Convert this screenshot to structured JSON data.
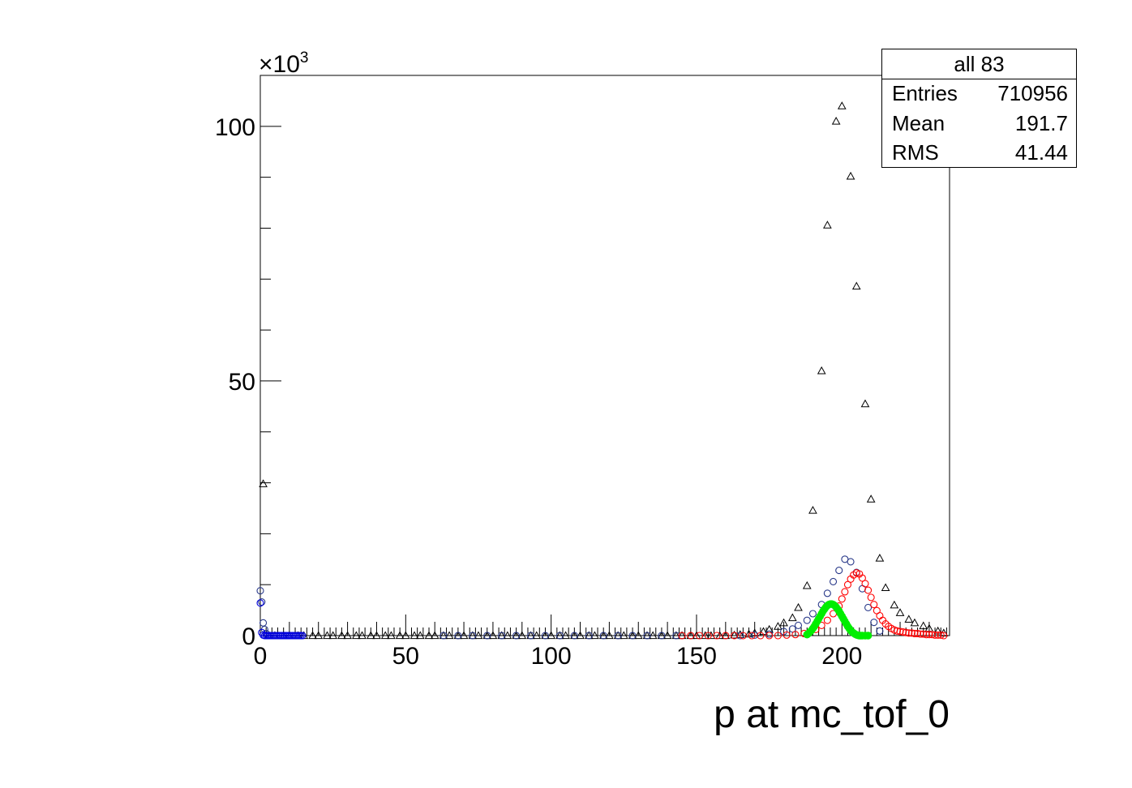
{
  "stats_box": {
    "title": "all 83",
    "rows": [
      {
        "label": "Entries",
        "value": "710956"
      },
      {
        "label": "Mean",
        "value": "191.7"
      },
      {
        "label": "RMS",
        "value": "41.44"
      }
    ]
  },
  "chart_data": {
    "type": "scatter",
    "title": "",
    "xlabel": "p at mc_tof_0",
    "ylabel": "",
    "y_multiplier_label": "×10",
    "y_multiplier_exponent": "3",
    "xlim": [
      0,
      237
    ],
    "ylim": [
      0,
      110000
    ],
    "x_ticks": [
      0,
      50,
      100,
      150,
      200
    ],
    "x_tick_labels": [
      "0",
      "50",
      "100",
      "150",
      "200"
    ],
    "y_ticks": [
      0,
      50000,
      100000
    ],
    "y_tick_labels": [
      "0",
      "50",
      "100"
    ],
    "grid": false,
    "series": [
      {
        "marker": "open-triangle",
        "color": "#000000",
        "points": [
          [
            1,
            29800
          ],
          [
            3,
            0
          ],
          [
            5,
            0
          ],
          [
            8,
            0
          ],
          [
            10,
            0
          ],
          [
            13,
            0
          ],
          [
            15,
            0
          ],
          [
            18,
            0
          ],
          [
            20,
            0
          ],
          [
            23,
            0
          ],
          [
            25,
            0
          ],
          [
            28,
            0
          ],
          [
            30,
            0
          ],
          [
            33,
            0
          ],
          [
            35,
            0
          ],
          [
            38,
            0
          ],
          [
            40,
            0
          ],
          [
            43,
            0
          ],
          [
            45,
            0
          ],
          [
            48,
            0
          ],
          [
            50,
            0
          ],
          [
            53,
            0
          ],
          [
            55,
            0
          ],
          [
            58,
            0
          ],
          [
            60,
            0
          ],
          [
            63,
            0
          ],
          [
            65,
            0
          ],
          [
            68,
            0
          ],
          [
            70,
            0
          ],
          [
            73,
            0
          ],
          [
            75,
            0
          ],
          [
            78,
            0
          ],
          [
            80,
            0
          ],
          [
            83,
            0
          ],
          [
            85,
            0
          ],
          [
            88,
            0
          ],
          [
            90,
            0
          ],
          [
            93,
            0
          ],
          [
            95,
            0
          ],
          [
            98,
            0
          ],
          [
            100,
            0
          ],
          [
            103,
            0
          ],
          [
            105,
            0
          ],
          [
            108,
            0
          ],
          [
            110,
            0
          ],
          [
            113,
            0
          ],
          [
            115,
            0
          ],
          [
            118,
            0
          ],
          [
            120,
            0
          ],
          [
            123,
            0
          ],
          [
            125,
            0
          ],
          [
            128,
            0
          ],
          [
            130,
            0
          ],
          [
            133,
            0
          ],
          [
            135,
            0
          ],
          [
            138,
            0
          ],
          [
            140,
            0
          ],
          [
            143,
            0
          ],
          [
            145,
            0
          ],
          [
            148,
            0
          ],
          [
            150,
            0
          ],
          [
            153,
            0
          ],
          [
            155,
            0
          ],
          [
            158,
            0
          ],
          [
            160,
            0
          ],
          [
            163,
            100
          ],
          [
            165,
            200
          ],
          [
            168,
            300
          ],
          [
            170,
            500
          ],
          [
            173,
            800
          ],
          [
            175,
            1200
          ],
          [
            178,
            1800
          ],
          [
            180,
            2500
          ],
          [
            183,
            3500
          ],
          [
            185,
            5500
          ],
          [
            188,
            9800
          ],
          [
            190,
            24600
          ],
          [
            193,
            52000
          ],
          [
            195,
            80600
          ],
          [
            198,
            101000
          ],
          [
            200,
            104000
          ],
          [
            203,
            90200
          ],
          [
            205,
            68600
          ],
          [
            208,
            45500
          ],
          [
            210,
            26800
          ],
          [
            213,
            15200
          ],
          [
            215,
            9400
          ],
          [
            218,
            6000
          ],
          [
            220,
            4500
          ],
          [
            223,
            3200
          ],
          [
            225,
            2500
          ],
          [
            228,
            1900
          ],
          [
            230,
            1400
          ],
          [
            233,
            900
          ],
          [
            235,
            500
          ]
        ]
      },
      {
        "marker": "open-circle",
        "color": "#2a3a8a",
        "points": [
          [
            0,
            8800
          ],
          [
            0.5,
            6600
          ],
          [
            1,
            2500
          ],
          [
            1.5,
            1200
          ],
          [
            2,
            400
          ],
          [
            63,
            0
          ],
          [
            68,
            0
          ],
          [
            73,
            0
          ],
          [
            78,
            0
          ],
          [
            83,
            0
          ],
          [
            88,
            0
          ],
          [
            93,
            0
          ],
          [
            98,
            0
          ],
          [
            103,
            0
          ],
          [
            108,
            0
          ],
          [
            113,
            0
          ],
          [
            118,
            0
          ],
          [
            123,
            0
          ],
          [
            128,
            0
          ],
          [
            133,
            0
          ],
          [
            138,
            0
          ],
          [
            143,
            0
          ],
          [
            165,
            0
          ],
          [
            170,
            100
          ],
          [
            175,
            300
          ],
          [
            180,
            800
          ],
          [
            183,
            1300
          ],
          [
            185,
            2000
          ],
          [
            188,
            3000
          ],
          [
            190,
            4300
          ],
          [
            193,
            6100
          ],
          [
            195,
            8300
          ],
          [
            197,
            10600
          ],
          [
            199,
            12800
          ],
          [
            201,
            15000
          ],
          [
            203,
            14500
          ],
          [
            205,
            12400
          ],
          [
            207,
            9200
          ],
          [
            209,
            5500
          ],
          [
            211,
            2600
          ],
          [
            213,
            900
          ]
        ]
      },
      {
        "marker": "open-circle",
        "color": "#0000dd",
        "points": [
          [
            0,
            6400
          ],
          [
            0.5,
            600
          ],
          [
            1,
            100
          ],
          [
            1.5,
            0
          ],
          [
            2,
            0
          ],
          [
            2.5,
            0
          ],
          [
            3,
            0
          ],
          [
            3.5,
            0
          ],
          [
            4,
            0
          ],
          [
            4.5,
            0
          ],
          [
            5,
            0
          ],
          [
            5.5,
            0
          ],
          [
            6,
            0
          ],
          [
            6.5,
            0
          ],
          [
            7,
            0
          ],
          [
            7.5,
            0
          ],
          [
            8,
            0
          ],
          [
            8.5,
            0
          ],
          [
            9,
            0
          ],
          [
            9.5,
            0
          ],
          [
            10,
            0
          ],
          [
            10.5,
            0
          ],
          [
            11,
            0
          ],
          [
            11.5,
            0
          ],
          [
            12,
            0
          ],
          [
            12.5,
            0
          ],
          [
            13,
            0
          ],
          [
            13.5,
            0
          ],
          [
            14,
            0
          ],
          [
            14.5,
            0
          ]
        ]
      },
      {
        "marker": "open-circle",
        "color": "#ff0000",
        "points": [
          [
            145,
            0
          ],
          [
            148,
            0
          ],
          [
            151,
            0
          ],
          [
            154,
            0
          ],
          [
            157,
            0
          ],
          [
            160,
            0
          ],
          [
            163,
            0
          ],
          [
            166,
            0
          ],
          [
            169,
            0
          ],
          [
            172,
            0
          ],
          [
            175,
            0
          ],
          [
            178,
            0
          ],
          [
            181,
            100
          ],
          [
            184,
            200
          ],
          [
            187,
            400
          ],
          [
            189,
            700
          ],
          [
            191,
            1200
          ],
          [
            193,
            2000
          ],
          [
            195,
            3000
          ],
          [
            197,
            4300
          ],
          [
            199,
            5800
          ],
          [
            200,
            7200
          ],
          [
            201,
            8600
          ],
          [
            202,
            10000
          ],
          [
            203,
            11100
          ],
          [
            204,
            11900
          ],
          [
            205,
            12300
          ],
          [
            206,
            12100
          ],
          [
            207,
            11300
          ],
          [
            208,
            10200
          ],
          [
            209,
            8900
          ],
          [
            210,
            7500
          ],
          [
            211,
            6100
          ],
          [
            212,
            4900
          ],
          [
            213,
            3900
          ],
          [
            214,
            3000
          ],
          [
            215,
            2300
          ],
          [
            216,
            1800
          ],
          [
            217,
            1400
          ],
          [
            218,
            1100
          ],
          [
            219,
            900
          ],
          [
            220,
            800
          ],
          [
            221,
            700
          ],
          [
            222,
            600
          ],
          [
            223,
            500
          ],
          [
            224,
            500
          ],
          [
            225,
            400
          ],
          [
            226,
            400
          ],
          [
            227,
            300
          ],
          [
            228,
            300
          ],
          [
            229,
            200
          ],
          [
            230,
            200
          ],
          [
            231,
            200
          ],
          [
            232,
            100
          ],
          [
            233,
            100
          ],
          [
            234,
            100
          ],
          [
            235,
            0
          ]
        ]
      },
      {
        "marker": "filled-circle",
        "color": "#00ee00",
        "points": [
          [
            188,
            200
          ],
          [
            188.5,
            400
          ],
          [
            189,
            700
          ],
          [
            189.5,
            1000
          ],
          [
            190,
            1400
          ],
          [
            190.5,
            1800
          ],
          [
            191,
            2300
          ],
          [
            191.5,
            2800
          ],
          [
            192,
            3300
          ],
          [
            192.5,
            3800
          ],
          [
            193,
            4300
          ],
          [
            193.5,
            4800
          ],
          [
            194,
            5200
          ],
          [
            194.5,
            5600
          ],
          [
            195,
            5900
          ],
          [
            195.5,
            6100
          ],
          [
            196,
            6200
          ],
          [
            196.5,
            6200
          ],
          [
            197,
            6100
          ],
          [
            197.5,
            5900
          ],
          [
            198,
            5600
          ],
          [
            198.5,
            5200
          ],
          [
            199,
            4800
          ],
          [
            199.5,
            4300
          ],
          [
            200,
            3800
          ],
          [
            200.5,
            3300
          ],
          [
            201,
            2800
          ],
          [
            201.5,
            2300
          ],
          [
            202,
            1800
          ],
          [
            202.5,
            1400
          ],
          [
            203,
            1000
          ],
          [
            203.5,
            700
          ],
          [
            204,
            500
          ],
          [
            204.5,
            300
          ],
          [
            205,
            150
          ],
          [
            205.5,
            50
          ],
          [
            206,
            0
          ],
          [
            206.5,
            0
          ],
          [
            207,
            0
          ],
          [
            208,
            0
          ],
          [
            209,
            0
          ]
        ]
      }
    ]
  }
}
